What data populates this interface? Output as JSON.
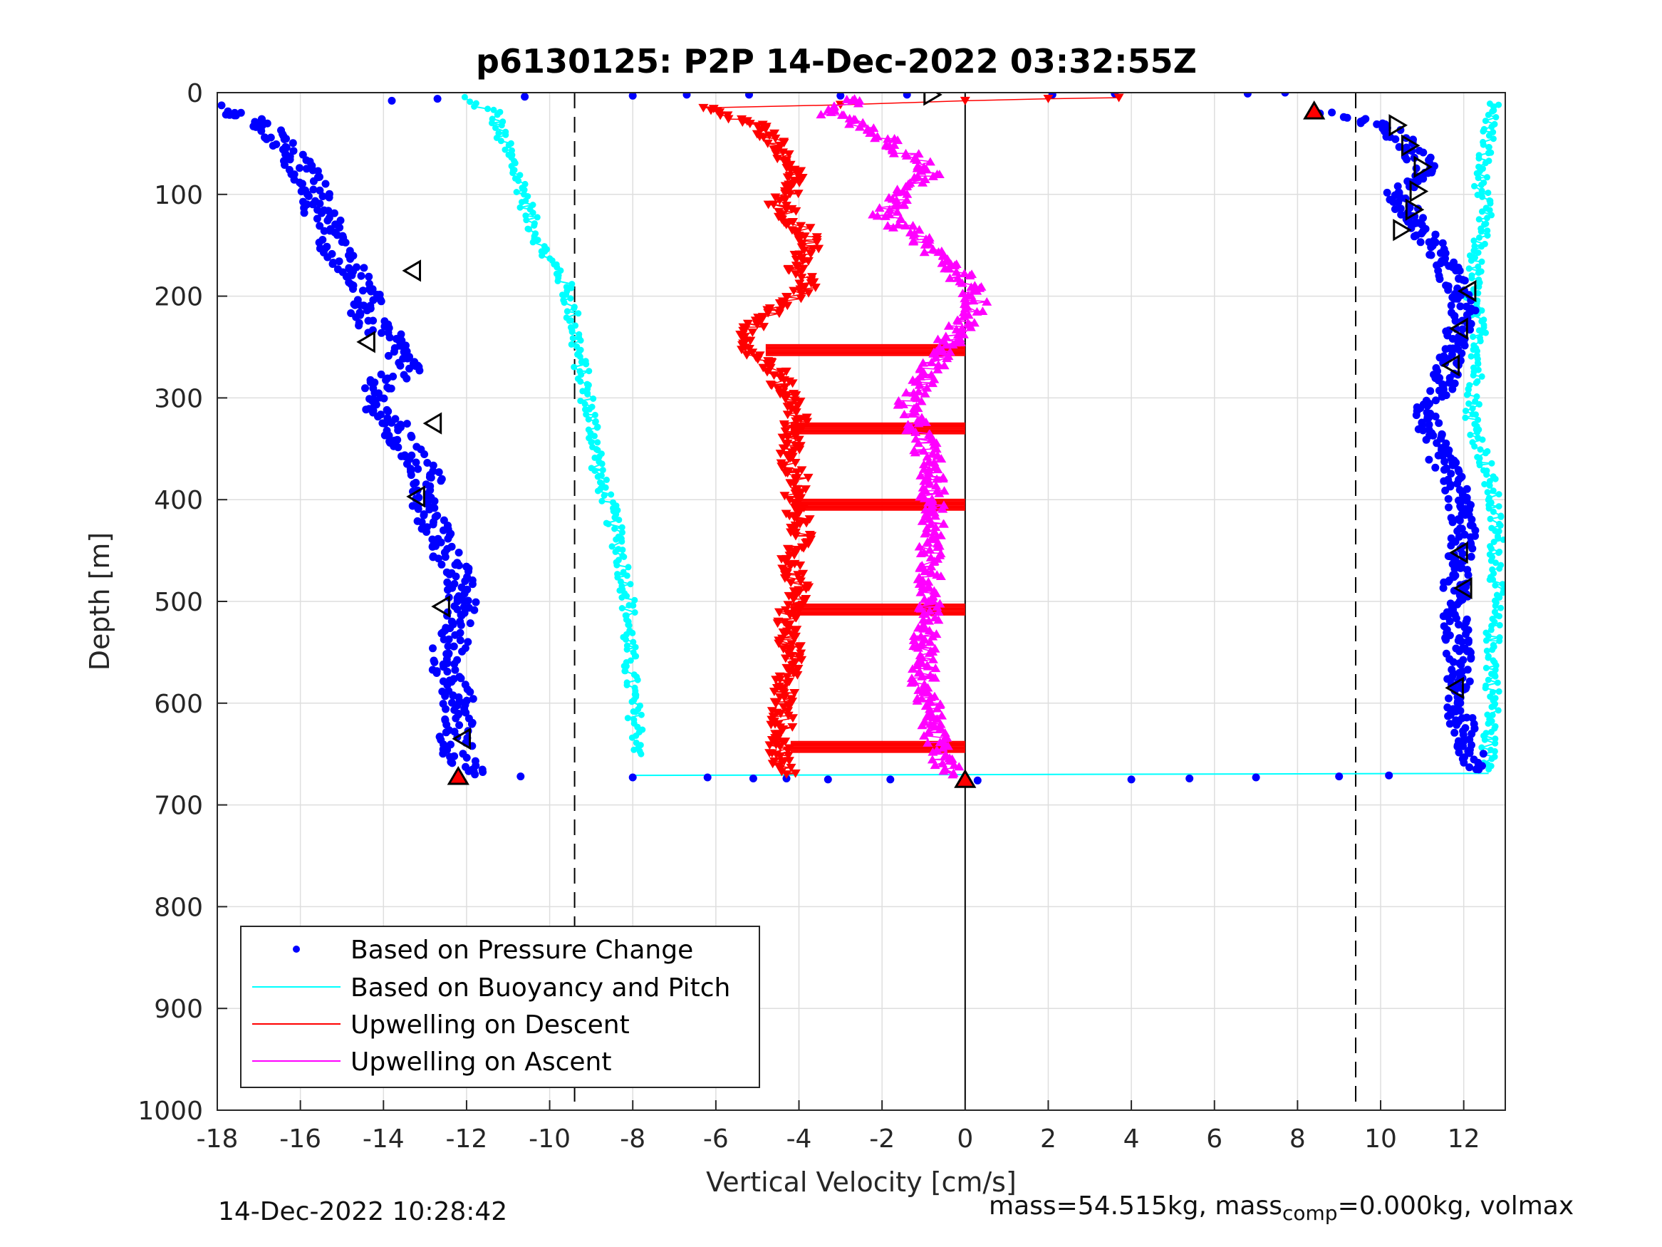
{
  "chart_data": {
    "type": "scatter",
    "title": "p6130125: P2P 14-Dec-2022 03:32:55Z",
    "xlabel": "Vertical Velocity [cm/s]",
    "ylabel": "Depth [m]",
    "xlim": [
      -18,
      13
    ],
    "ylim": [
      0,
      1000
    ],
    "y_reversed": true,
    "xticks": [
      "-18",
      "-16",
      "-14",
      "-12",
      "-10",
      "-8",
      "-6",
      "-4",
      "-2",
      "0",
      "2",
      "4",
      "6",
      "8",
      "10",
      "12"
    ],
    "yticks": [
      "0",
      "100",
      "200",
      "300",
      "400",
      "500",
      "600",
      "700",
      "800",
      "900",
      "1000"
    ],
    "grid": true,
    "legend_position": "bottom-left",
    "reference_lines": {
      "dashed_x": [
        -9.4,
        9.4
      ],
      "solid_x": [
        0
      ]
    },
    "colors": {
      "pressure": "#0000ff",
      "buoyancy": "#00ffff",
      "descent": "#ff0000",
      "ascent": "#ff00ff",
      "axis": "#262626",
      "grid": "#dedede"
    },
    "series": [
      {
        "name": "Based on Pressure Change",
        "marker": "dot",
        "descent": {
          "x": [
            -17.6,
            -17.0,
            -16.4,
            -15.9,
            -15.6,
            -15.7,
            -15.3,
            -15.2,
            -14.8,
            -14.6,
            -14.4,
            -14.5,
            -13.8,
            -13.4,
            -14.0,
            -14.4,
            -13.9,
            -13.6,
            -13.2,
            -12.9,
            -13.1,
            -13.0,
            -12.7,
            -12.4,
            -12.2,
            -12.1,
            -12.2,
            -12.6,
            -12.2,
            -12.2,
            -12.3,
            -12.2,
            -12.0,
            -11.8
          ],
          "y": [
            15,
            30,
            55,
            80,
            95,
            110,
            130,
            150,
            170,
            185,
            205,
            220,
            245,
            270,
            285,
            300,
            320,
            345,
            360,
            380,
            395,
            410,
            430,
            460,
            480,
            505,
            530,
            560,
            590,
            615,
            635,
            650,
            660,
            670
          ]
        },
        "ascent": {
          "x": [
            8.4,
            9.6,
            10.1,
            10.6,
            10.9,
            11.2,
            10.4,
            10.7,
            11.3,
            11.6,
            11.8,
            12.0,
            11.8,
            11.6,
            11.5,
            11.1,
            11.2,
            11.6,
            11.9,
            12.0,
            11.9,
            11.8,
            11.8,
            11.9,
            11.8,
            12.1,
            12.3
          ],
          "y": [
            20,
            25,
            35,
            50,
            65,
            80,
            100,
            120,
            150,
            170,
            190,
            215,
            240,
            270,
            290,
            310,
            340,
            370,
            400,
            430,
            455,
            480,
            520,
            560,
            600,
            640,
            665
          ]
        },
        "bottom": {
          "x": [
            -10.7,
            -8.0,
            -6.2,
            -5.1,
            -4.3,
            -3.3,
            -1.8,
            0.3,
            4.0,
            5.4,
            7.0,
            9.0,
            10.2
          ],
          "y": [
            672,
            673,
            673,
            674,
            674,
            675,
            675,
            676,
            675,
            674,
            673,
            672,
            671
          ]
        },
        "surface": {
          "x": [
            -13.8,
            -12.7,
            -10.6,
            -8.0,
            -6.7,
            -5.2,
            -3.0,
            -1.4,
            2.1,
            3.6,
            6.8,
            7.7
          ],
          "y": [
            8,
            6,
            4,
            3,
            2,
            2,
            3,
            2,
            2,
            1,
            1,
            0
          ]
        }
      },
      {
        "name": "Based on Buoyancy and Pitch",
        "marker": "line",
        "descent": {
          "x": [
            -12.1,
            -11.3,
            -11.2,
            -11.0,
            -10.8,
            -10.6,
            -10.5,
            -10.3,
            -10.1,
            -9.8,
            -9.6,
            -9.5,
            -9.4,
            -9.3,
            -9.1,
            -8.9,
            -8.8,
            -8.6,
            -8.3,
            -8.1,
            -8.1,
            -8.0,
            -7.8
          ],
          "y": [
            5,
            20,
            40,
            60,
            80,
            100,
            120,
            140,
            160,
            175,
            190,
            210,
            230,
            260,
            300,
            340,
            380,
            400,
            450,
            500,
            550,
            600,
            650
          ]
        },
        "ascent": {
          "x": [
            12.7,
            12.6,
            12.4,
            12.5,
            12.3,
            12.2,
            12.4,
            12.3,
            12.2,
            12.5,
            12.7,
            12.8,
            12.8,
            12.7,
            12.7,
            12.7,
            12.6,
            12.6
          ],
          "y": [
            10,
            40,
            80,
            120,
            160,
            200,
            240,
            280,
            320,
            360,
            400,
            440,
            480,
            520,
            560,
            600,
            640,
            665
          ]
        }
      },
      {
        "name": "Upwelling on Descent",
        "marker": "triangle-down",
        "x": [
          -6.3,
          -5.0,
          -4.6,
          -4.3,
          -4.1,
          -4.5,
          -4.0,
          -3.7,
          -4.1,
          -3.8,
          -4.4,
          -5.1,
          -5.3,
          -4.6,
          -4.4,
          -4.0,
          -4.1,
          -4.3,
          -4.0,
          -4.2,
          -3.9,
          -4.2,
          -4.0,
          -4.3,
          -4.2,
          -4.4,
          -4.4,
          -4.5,
          -4.3
        ],
        "y": [
          15,
          30,
          50,
          70,
          90,
          110,
          130,
          150,
          170,
          190,
          210,
          230,
          250,
          270,
          290,
          310,
          330,
          360,
          380,
          400,
          430,
          460,
          490,
          520,
          560,
          600,
          630,
          655,
          670
        ],
        "rungs": [
          {
            "y": 253,
            "x0": -4.8,
            "x1": 0.0
          },
          {
            "y": 330,
            "x0": -4.2,
            "x1": 0.0
          },
          {
            "y": 405,
            "x0": -4.1,
            "x1": 0.0
          },
          {
            "y": 508,
            "x0": -4.2,
            "x1": 0.0
          },
          {
            "y": 643,
            "x0": -4.2,
            "x1": 0.0
          }
        ],
        "surface_spike": {
          "x": [
            -6.3,
            -3.0,
            0.0,
            2.0,
            3.7
          ],
          "y": [
            15,
            12,
            8,
            6,
            5
          ]
        }
      },
      {
        "name": "Upwelling on Ascent",
        "marker": "triangle-up",
        "x": [
          -2.6,
          -3.2,
          -2.0,
          -1.4,
          -0.8,
          -1.5,
          -2.0,
          -1.2,
          -0.6,
          -0.1,
          0.3,
          0.1,
          -0.4,
          -0.8,
          -1.1,
          -1.4,
          -1.0,
          -0.8,
          -0.8,
          -0.7,
          -0.9,
          -0.8,
          -1.0,
          -1.0,
          -0.8,
          -0.6,
          -0.3
        ],
        "y": [
          5,
          20,
          40,
          60,
          80,
          100,
          120,
          140,
          160,
          180,
          200,
          220,
          245,
          270,
          290,
          310,
          340,
          370,
          400,
          430,
          460,
          500,
          540,
          580,
          620,
          650,
          670
        ]
      }
    ],
    "markers": {
      "open_left_triangles": [
        {
          "x": -13.3,
          "y": 175
        },
        {
          "x": -14.4,
          "y": 245
        },
        {
          "x": -12.8,
          "y": 325
        },
        {
          "x": -13.2,
          "y": 397
        },
        {
          "x": -12.6,
          "y": 505
        },
        {
          "x": -12.1,
          "y": 635
        },
        {
          "x": 12.1,
          "y": 195
        },
        {
          "x": 11.9,
          "y": 232
        },
        {
          "x": 11.7,
          "y": 268
        },
        {
          "x": 11.9,
          "y": 452
        },
        {
          "x": 12.0,
          "y": 487
        },
        {
          "x": 11.8,
          "y": 585
        }
      ],
      "open_right_triangles": [
        {
          "x": -0.8,
          "y": 2
        },
        {
          "x": 10.4,
          "y": 32
        },
        {
          "x": 10.7,
          "y": 52
        },
        {
          "x": 11.0,
          "y": 73
        },
        {
          "x": 10.9,
          "y": 97
        },
        {
          "x": 10.8,
          "y": 115
        },
        {
          "x": 10.5,
          "y": 135
        }
      ],
      "red_filled_triangles": [
        {
          "x": -12.2,
          "y": 672
        },
        {
          "x": 8.4,
          "y": 18
        },
        {
          "x": 0.0,
          "y": 675
        }
      ]
    }
  },
  "footer": {
    "timestamp": "14-Dec-2022 10:28:42",
    "mass_text": "mass=54.515kg, mass",
    "mass_sub": "comp",
    "mass_rest": "=0.000kg, volmax"
  }
}
